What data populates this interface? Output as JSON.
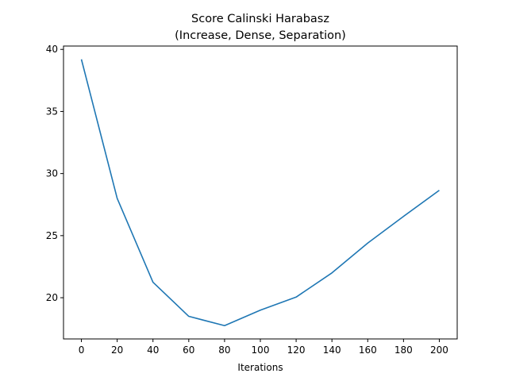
{
  "chart_data": {
    "type": "line",
    "title": "Score Calinski Harabasz",
    "subtitle": "(Increase, Dense, Separation)",
    "xlabel": "Iterations",
    "ylabel": "",
    "x": [
      0,
      20,
      40,
      60,
      80,
      100,
      120,
      140,
      160,
      180,
      200
    ],
    "series": [
      {
        "values": [
          39.2,
          28.0,
          21.25,
          18.5,
          17.75,
          19.0,
          20.05,
          22.0,
          24.4,
          26.55,
          28.65
        ],
        "color": "#1f77b4"
      }
    ],
    "xticks": [
      0,
      20,
      40,
      60,
      80,
      100,
      120,
      140,
      160,
      180,
      200
    ],
    "yticks": [
      20,
      25,
      30,
      35,
      40
    ],
    "xlim": [
      -10,
      210
    ],
    "ylim": [
      16.68,
      40.27
    ],
    "grid": false,
    "legend": "none"
  }
}
